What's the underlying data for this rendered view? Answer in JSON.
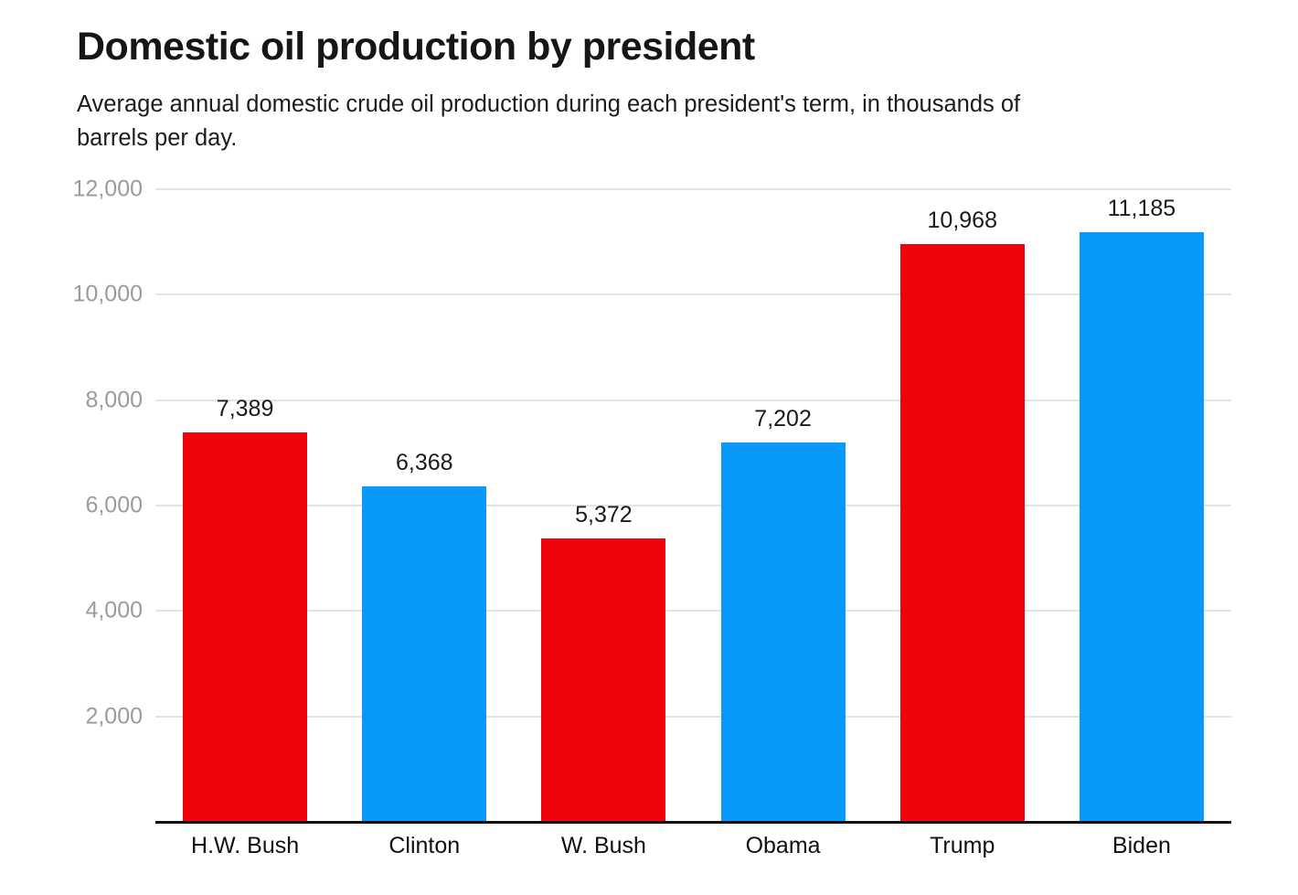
{
  "chart_data": {
    "type": "bar",
    "title": "Domestic oil production by president",
    "subtitle": "Average annual domestic crude oil production during each president's term, in thousands of\nbarrels per day.",
    "categories": [
      "H.W. Bush",
      "Clinton",
      "W. Bush",
      "Obama",
      "Trump",
      "Biden"
    ],
    "values": [
      7389,
      6368,
      5372,
      7202,
      10968,
      11185
    ],
    "value_labels": [
      "7,389",
      "6,368",
      "5,372",
      "7,202",
      "10,968",
      "11,185"
    ],
    "bar_parties": [
      "republican",
      "democrat",
      "republican",
      "democrat",
      "republican",
      "democrat"
    ],
    "party_colors": {
      "republican": "#ee0409",
      "democrat": "#0899fa"
    },
    "xlabel": "",
    "ylabel": "",
    "ylim": [
      0,
      12000
    ],
    "yticks": [
      {
        "value": 2000,
        "label": "2,000"
      },
      {
        "value": 4000,
        "label": "4,000"
      },
      {
        "value": 6000,
        "label": "6,000"
      },
      {
        "value": 8000,
        "label": "8,000"
      },
      {
        "value": 10000,
        "label": "10,000"
      },
      {
        "value": 12000,
        "label": "12,000"
      }
    ],
    "grid": true,
    "gridline_color": "#e4e4e4",
    "axis_line_color": "#121212",
    "tick_label_color": "#9b9b9b",
    "legend": "none"
  }
}
